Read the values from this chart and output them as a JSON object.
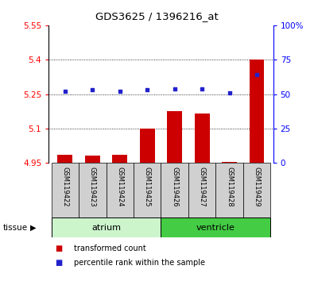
{
  "title": "GDS3625 / 1396216_at",
  "samples": [
    "GSM119422",
    "GSM119423",
    "GSM119424",
    "GSM119425",
    "GSM119426",
    "GSM119427",
    "GSM119428",
    "GSM119429"
  ],
  "red_values": [
    4.985,
    4.983,
    4.987,
    5.1,
    5.175,
    5.165,
    4.953,
    5.4
  ],
  "blue_values": [
    52,
    53,
    52,
    53,
    54,
    54,
    51,
    64
  ],
  "ylim_left": [
    4.95,
    5.55
  ],
  "ylim_right": [
    0,
    100
  ],
  "yticks_left": [
    4.95,
    5.1,
    5.25,
    5.4,
    5.55
  ],
  "yticks_right": [
    0,
    25,
    50,
    75,
    100
  ],
  "ytick_labels_left": [
    "4.95",
    "5.1",
    "5.25",
    "5.4",
    "5.55"
  ],
  "ytick_labels_right": [
    "0",
    "25",
    "50",
    "75",
    "100%"
  ],
  "red_color": "#cc0000",
  "blue_color": "#2222cc",
  "bar_bottom": 4.95,
  "tissue_label": "tissue",
  "legend_red": "transformed count",
  "legend_blue": "percentile rank within the sample",
  "sample_bg_color": "#d0d0d0",
  "atrium_color": "#ccf5cc",
  "ventricle_color": "#44cc44",
  "grid_lines": [
    5.1,
    5.25,
    5.4
  ]
}
